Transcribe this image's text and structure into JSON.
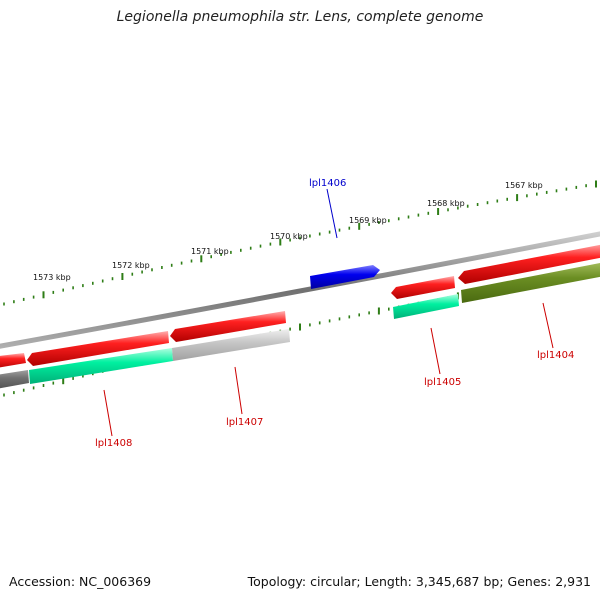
{
  "title": "Legionella pneumophila str. Lens, complete genome",
  "footer": {
    "accession": "Accession: NC_006369",
    "summary": "Topology: circular; Length: 3,345,687 bp; Genes: 2,931"
  },
  "scale_labels": [
    "1567 kbp",
    "1568 kbp",
    "1569 kbp",
    "1570 kbp",
    "1571 kbp",
    "1572 kbp",
    "1573 kbp"
  ],
  "gene_labels": {
    "lpl1406": "lpl1406",
    "lpl1407": "lpl1407",
    "lpl1408": "lpl1408",
    "lpl1405": "lpl1405",
    "lpl1404": "lpl1404"
  },
  "colors": {
    "forward_cds": "#0000ee",
    "cds": "#ee0000",
    "teal_track": "#00f0a0",
    "grey_track": "#aaaaaa",
    "olive_track": "#6b8e23",
    "tick": "#2e7d16",
    "red_label": "#cc0000",
    "blue_label": "#0000cc"
  }
}
